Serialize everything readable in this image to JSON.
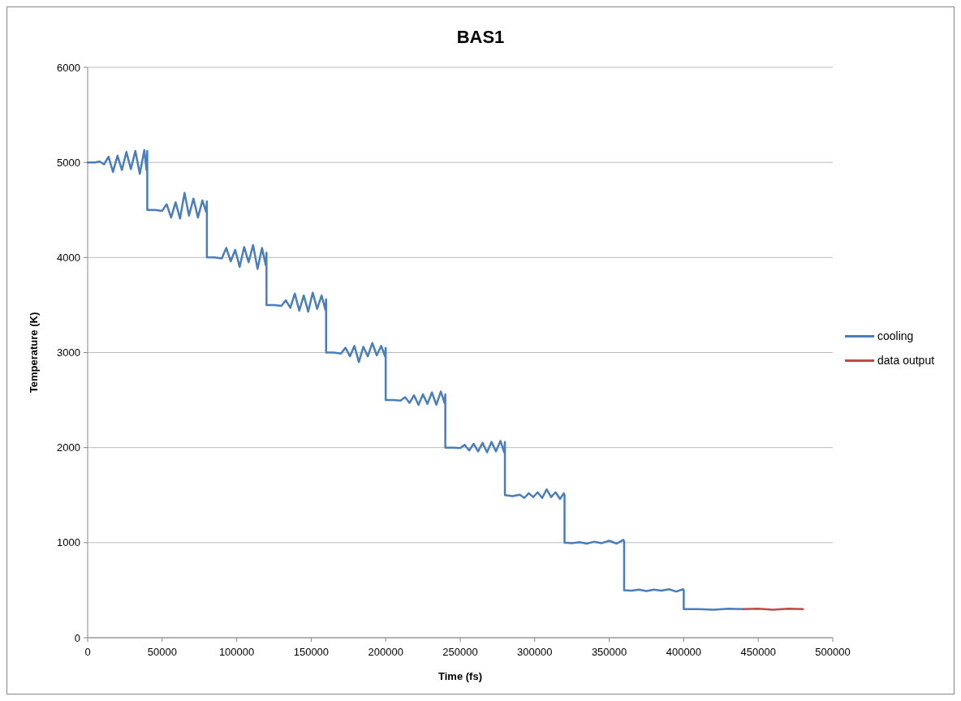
{
  "chart_data": {
    "type": "line",
    "title": "BAS1",
    "xlabel": "Time (fs)",
    "ylabel": "Temperature (K)",
    "xlim": [
      0,
      500000
    ],
    "xticks": [
      0,
      50000,
      100000,
      150000,
      200000,
      250000,
      300000,
      350000,
      400000,
      450000,
      500000
    ],
    "ylim": [
      0,
      6000
    ],
    "yticks": [
      0,
      1000,
      2000,
      3000,
      4000,
      5000,
      6000
    ],
    "grid": "y",
    "legend": "right",
    "line_style": "solid",
    "marker": "none",
    "series": [
      {
        "name": "cooling",
        "color": "#4a7ebb",
        "x": [
          0,
          5000,
          8000,
          11000,
          14000,
          17000,
          20000,
          23000,
          26000,
          29000,
          32000,
          35000,
          38000,
          39500,
          40000,
          40000,
          45000,
          50000,
          53000,
          56000,
          59000,
          62000,
          65000,
          68000,
          71000,
          74000,
          77000,
          79500,
          80000,
          80000,
          85000,
          90000,
          93000,
          96000,
          99000,
          102000,
          105000,
          108000,
          111000,
          114000,
          117000,
          119500,
          120000,
          120000,
          125000,
          130000,
          133000,
          136000,
          139000,
          142000,
          145000,
          148000,
          151000,
          154000,
          157000,
          159500,
          160000,
          160000,
          165000,
          170000,
          173000,
          176000,
          179000,
          182000,
          185000,
          188000,
          191000,
          194000,
          197000,
          199500,
          200000,
          200000,
          205000,
          210000,
          213000,
          216000,
          219000,
          222000,
          225000,
          228000,
          231000,
          234000,
          237000,
          239500,
          240000,
          240000,
          245000,
          250000,
          253000,
          256000,
          259000,
          262000,
          265000,
          268000,
          271000,
          274000,
          277000,
          279500,
          280000,
          280000,
          285000,
          290000,
          293000,
          296000,
          299000,
          302000,
          305000,
          308000,
          311000,
          314000,
          317000,
          319500,
          320000,
          320000,
          325000,
          330000,
          335000,
          340000,
          345000,
          350000,
          355000,
          359500,
          360000,
          360000,
          365000,
          370000,
          375000,
          380000,
          385000,
          390000,
          395000,
          399500,
          400000,
          400000,
          410000,
          420000,
          430000,
          440000
        ],
        "values": [
          5000,
          5000,
          5010,
          4980,
          5060,
          4900,
          5070,
          4920,
          5110,
          4930,
          5120,
          4880,
          5130,
          4920,
          5120,
          4500,
          4500,
          4490,
          4560,
          4420,
          4580,
          4410,
          4680,
          4440,
          4620,
          4420,
          4600,
          4480,
          4590,
          4000,
          4000,
          3990,
          4100,
          3960,
          4080,
          3900,
          4110,
          3950,
          4130,
          3880,
          4100,
          3920,
          4050,
          3500,
          3500,
          3490,
          3550,
          3470,
          3620,
          3440,
          3600,
          3430,
          3630,
          3460,
          3600,
          3450,
          3560,
          3000,
          3000,
          2990,
          3050,
          2960,
          3070,
          2900,
          3060,
          2960,
          3100,
          2970,
          3070,
          2960,
          3050,
          2500,
          2500,
          2495,
          2530,
          2470,
          2550,
          2450,
          2560,
          2460,
          2580,
          2450,
          2590,
          2470,
          2560,
          2000,
          2000,
          1995,
          2030,
          1970,
          2040,
          1960,
          2050,
          1950,
          2060,
          1960,
          2070,
          1950,
          2060,
          1500,
          1490,
          1505,
          1470,
          1520,
          1480,
          1530,
          1470,
          1560,
          1480,
          1530,
          1460,
          1520,
          1500,
          1000,
          995,
          1005,
          990,
          1010,
          995,
          1020,
          990,
          1030,
          1010,
          500,
          495,
          505,
          490,
          505,
          495,
          510,
          485,
          510,
          500,
          300,
          300,
          295,
          305,
          300
        ]
      },
      {
        "name": "data output",
        "color": "#be4b48",
        "x": [
          440000,
          450000,
          460000,
          470000,
          480000
        ],
        "values": [
          300,
          305,
          295,
          305,
          300
        ]
      }
    ]
  }
}
